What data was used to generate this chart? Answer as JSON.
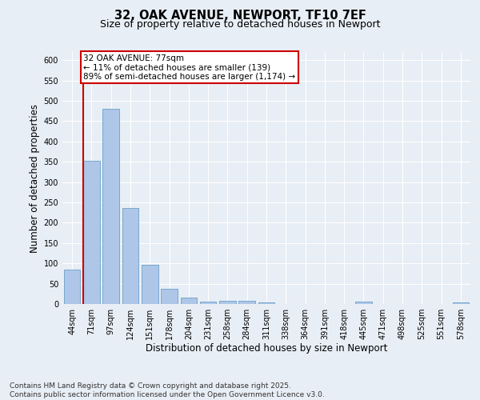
{
  "title_line1": "32, OAK AVENUE, NEWPORT, TF10 7EF",
  "title_line2": "Size of property relative to detached houses in Newport",
  "xlabel": "Distribution of detached houses by size in Newport",
  "ylabel": "Number of detached properties",
  "categories": [
    "44sqm",
    "71sqm",
    "97sqm",
    "124sqm",
    "151sqm",
    "178sqm",
    "204sqm",
    "231sqm",
    "258sqm",
    "284sqm",
    "311sqm",
    "338sqm",
    "364sqm",
    "391sqm",
    "418sqm",
    "445sqm",
    "471sqm",
    "498sqm",
    "525sqm",
    "551sqm",
    "578sqm"
  ],
  "values": [
    85,
    352,
    480,
    236,
    97,
    37,
    16,
    6,
    7,
    8,
    3,
    0,
    0,
    0,
    0,
    5,
    0,
    0,
    0,
    0,
    4
  ],
  "bar_color": "#aec6e8",
  "bar_edge_color": "#6a9fc8",
  "vline_color": "#cc0000",
  "vline_x": 1,
  "annotation_text": "32 OAK AVENUE: 77sqm\n← 11% of detached houses are smaller (139)\n89% of semi-detached houses are larger (1,174) →",
  "annotation_box_color": "#ffffff",
  "annotation_box_edge_color": "#cc0000",
  "ylim": [
    0,
    620
  ],
  "yticks": [
    0,
    50,
    100,
    150,
    200,
    250,
    300,
    350,
    400,
    450,
    500,
    550,
    600
  ],
  "background_color": "#e8eef5",
  "footer_line1": "Contains HM Land Registry data © Crown copyright and database right 2025.",
  "footer_line2": "Contains public sector information licensed under the Open Government Licence v3.0.",
  "title_fontsize": 10.5,
  "subtitle_fontsize": 9,
  "axis_label_fontsize": 8.5,
  "tick_fontsize": 7,
  "annotation_fontsize": 7.5,
  "footer_fontsize": 6.5
}
